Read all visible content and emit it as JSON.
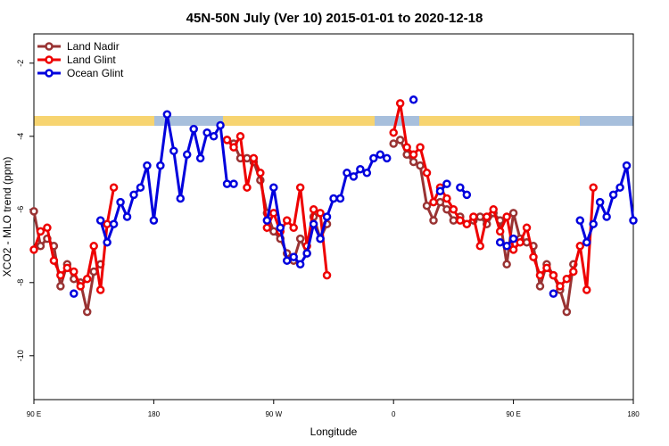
{
  "chart_data": {
    "type": "line",
    "title": "45N-50N July (Ver 10)   2015-01-01 to 2020-12-18",
    "x_label": "Longitude",
    "y_label": "XCO2 - MLO trend (ppm)",
    "x": [
      -270,
      -265,
      -260,
      -255,
      -250,
      -245,
      -240,
      -235,
      -230,
      -225,
      -220,
      -215,
      -210,
      -205,
      -200,
      -195,
      -190,
      -185,
      -180,
      -175,
      -170,
      -165,
      -160,
      -155,
      -150,
      -145,
      -140,
      -135,
      -130,
      -125,
      -120,
      -115,
      -110,
      -105,
      -100,
      -95,
      -90,
      -85,
      -80,
      -75,
      -70,
      -65,
      -60,
      -55,
      -50,
      -45,
      -40,
      -35,
      -30,
      -25,
      -20,
      -15,
      -10,
      -5,
      0,
      5,
      10,
      15,
      20,
      25,
      30,
      35,
      40,
      45,
      50,
      55,
      60,
      65,
      70,
      75,
      80,
      85,
      90,
      95,
      100,
      105,
      110,
      115,
      120,
      125,
      130,
      135,
      140,
      145,
      150,
      155,
      160,
      165,
      170,
      175,
      180
    ],
    "series": [
      {
        "name": "Land Nadir",
        "color": "#993333",
        "values": [
          -6.05,
          -7.0,
          -6.8,
          -7.0,
          -8.1,
          -7.5,
          -7.9,
          -8.0,
          -8.8,
          -7.7,
          -7.5,
          null,
          null,
          null,
          null,
          null,
          null,
          null,
          null,
          null,
          null,
          null,
          null,
          null,
          null,
          null,
          null,
          null,
          null,
          -4.1,
          -4.2,
          -4.6,
          -4.6,
          -4.7,
          -5.2,
          -6.1,
          -6.6,
          -6.8,
          -7.2,
          -7.4,
          -6.8,
          -7.2,
          -6.2,
          -6.8,
          -6.4,
          null,
          null,
          null,
          null,
          null,
          null,
          null,
          null,
          null,
          -4.2,
          -4.1,
          -4.5,
          -4.7,
          -4.8,
          -5.9,
          -6.3,
          -5.8,
          -6.0,
          -6.3,
          -6.2,
          -6.4,
          -6.3,
          -6.2,
          -6.4,
          -6.1,
          -6.3,
          -7.5,
          -6.1,
          -6.8,
          -6.9,
          -7.0,
          -8.1,
          -7.5,
          -7.8,
          -8.2,
          -8.8,
          -7.5,
          null,
          null,
          null,
          null,
          null,
          null,
          null,
          null,
          null
        ]
      },
      {
        "name": "Land Glint",
        "color": "#ee0000",
        "values": [
          -7.1,
          -6.6,
          -6.5,
          -7.4,
          -7.8,
          -7.6,
          -7.7,
          -8.1,
          -7.9,
          -7.0,
          -8.2,
          -6.4,
          -5.4,
          null,
          null,
          null,
          null,
          null,
          null,
          null,
          null,
          null,
          null,
          null,
          null,
          null,
          null,
          null,
          null,
          -4.1,
          -4.3,
          -4.0,
          -5.4,
          -4.6,
          -5.0,
          -6.5,
          -6.1,
          -6.6,
          -6.3,
          -6.5,
          -5.4,
          -7.0,
          -6.0,
          -6.1,
          -7.8,
          null,
          null,
          null,
          null,
          null,
          null,
          null,
          null,
          null,
          -3.9,
          -3.1,
          -4.3,
          -4.5,
          -4.3,
          -5.0,
          -5.8,
          -5.4,
          -5.7,
          -6.0,
          -6.3,
          -6.4,
          -6.2,
          -7.0,
          -6.2,
          -6.0,
          -6.6,
          -6.2,
          -7.1,
          -6.9,
          -6.5,
          -7.3,
          -7.8,
          -7.6,
          -7.8,
          -8.1,
          -7.9,
          -7.7,
          -7.0,
          -8.2,
          -5.4,
          null,
          null,
          null,
          null,
          null,
          null
        ]
      },
      {
        "name": "Ocean Glint",
        "color": "#0000dd",
        "values": [
          null,
          null,
          null,
          null,
          null,
          null,
          -8.3,
          null,
          null,
          null,
          -6.3,
          -6.9,
          -6.4,
          -5.8,
          -6.2,
          -5.6,
          -5.4,
          -4.8,
          -6.3,
          -4.8,
          -3.4,
          -4.4,
          -5.7,
          -4.5,
          -3.8,
          -4.6,
          -3.9,
          -4.0,
          -3.7,
          -5.3,
          -5.3,
          null,
          null,
          null,
          null,
          -6.3,
          -5.4,
          -6.5,
          -7.4,
          -7.3,
          -7.5,
          -7.2,
          -6.4,
          -6.8,
          -6.2,
          -5.7,
          -5.7,
          -5.0,
          -5.1,
          -4.9,
          -5.0,
          -4.6,
          -4.5,
          -4.6,
          null,
          null,
          null,
          -3.0,
          null,
          null,
          null,
          -5.5,
          -5.3,
          null,
          -5.4,
          -5.6,
          null,
          null,
          null,
          null,
          -6.9,
          -7.0,
          -6.8,
          null,
          null,
          null,
          null,
          null,
          -8.3,
          null,
          null,
          null,
          -6.3,
          -6.9,
          -6.4,
          -5.8,
          -6.2,
          -5.6,
          -5.4,
          -4.8,
          -6.3
        ]
      }
    ],
    "xlim": [
      -270,
      180
    ],
    "xticks": [
      {
        "value": -270,
        "label": "90 E"
      },
      {
        "value": -180,
        "label": "180"
      },
      {
        "value": -90,
        "label": "90 W"
      },
      0,
      {
        "value": 90,
        "label": "90 E"
      },
      180
    ],
    "ylim": [
      -11.2,
      -1.2
    ],
    "yticks": [
      -2,
      -4,
      -6,
      -8,
      -10
    ],
    "legend": "top-left"
  }
}
